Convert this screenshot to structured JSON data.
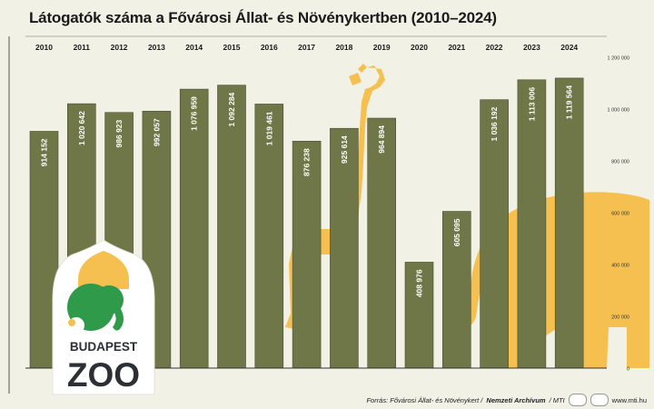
{
  "title": "Látogatók száma a Fővárosi Állat- és Növénykertben (2010–2024)",
  "chart_data": {
    "type": "bar",
    "title": "Látogatók száma a Fővárosi Állat- és Növénykertben (2010–2024)",
    "categories": [
      "2010",
      "2011",
      "2012",
      "2013",
      "2014",
      "2015",
      "2016",
      "2017",
      "2018",
      "2019",
      "2020",
      "2021",
      "2022",
      "2023",
      "2024"
    ],
    "values": [
      914152,
      1020642,
      986923,
      992057,
      1076959,
      1092284,
      1019461,
      876238,
      925614,
      964894,
      408976,
      605095,
      1036192,
      1113006,
      1119564
    ],
    "value_labels": [
      "914 152",
      "1 020 642",
      "986 923",
      "992 057",
      "1 076 959",
      "1 092 284",
      "1 019 461",
      "876 238",
      "925 614",
      "964 894",
      "408 976",
      "605 095",
      "1 036 192",
      "1 113 006",
      "1 119 564"
    ],
    "y_ticks": [
      0,
      200000,
      400000,
      600000,
      800000,
      1000000,
      1200000
    ],
    "y_tick_labels": [
      "0",
      "200 000",
      "400 000",
      "600 000",
      "800 000",
      "1 000 000",
      "1 200 000"
    ],
    "ylim": [
      0,
      1200000
    ],
    "bar_color": "#6f7647",
    "xlabel": "",
    "ylabel": ""
  },
  "logo": {
    "line1": "BUDAPEST",
    "line2": "ZOO"
  },
  "footer": {
    "source_label": "Forrás: Fővárosi Állat- és Növénykert /",
    "source_archive": "Nemzeti Archívum",
    "source_mti": "/ MTI",
    "website": "www.mti.hu"
  },
  "colors": {
    "background": "#f1f1e6",
    "bars": "#6f7647",
    "animals": "#f5c04f",
    "logo_green": "#2f9a4a"
  }
}
